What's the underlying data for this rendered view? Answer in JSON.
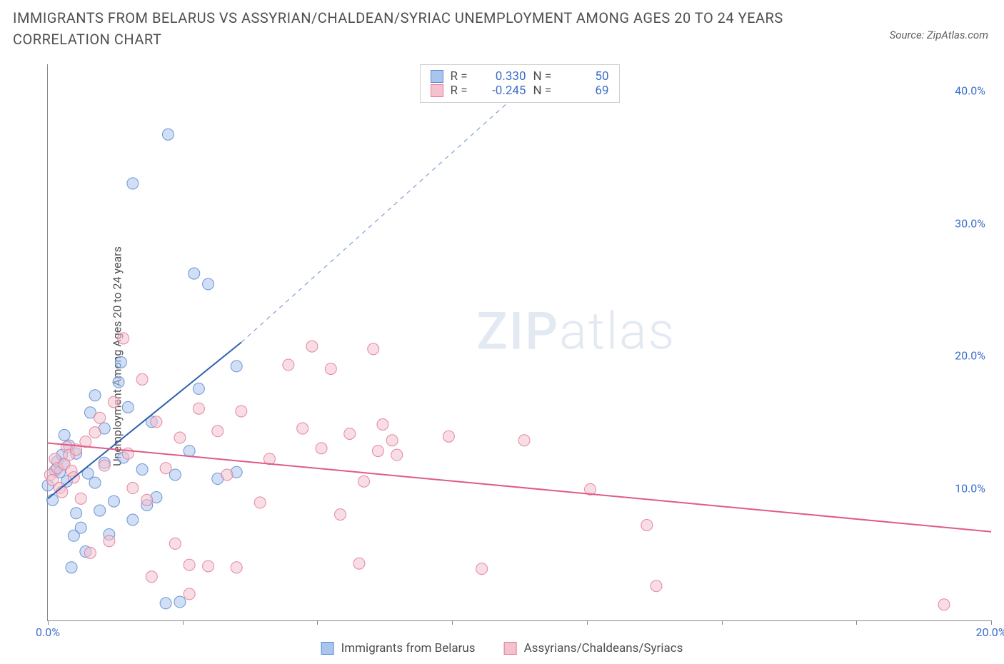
{
  "title": "IMMIGRANTS FROM BELARUS VS ASSYRIAN/CHALDEAN/SYRIAC UNEMPLOYMENT AMONG AGES 20 TO 24 YEARS CORRELATION CHART",
  "source": "Source: ZipAtlas.com",
  "watermark_a": "ZIP",
  "watermark_b": "atlas",
  "ylabel": "Unemployment Among Ages 20 to 24 years",
  "chart": {
    "type": "scatter",
    "background_color": "#ffffff",
    "axis_color": "#888888",
    "tick_label_color": "#3b6fc9",
    "xlim": [
      0,
      20
    ],
    "ylim": [
      0,
      42
    ],
    "xticks": [
      0,
      2.86,
      5.71,
      8.57,
      11.43,
      14.29,
      17.14,
      20
    ],
    "xtick_labels": [
      "0.0%",
      "",
      "",
      "",
      "",
      "",
      "",
      "20.0%"
    ],
    "yticks": [
      10,
      20,
      30,
      40
    ],
    "ytick_labels": [
      "10.0%",
      "20.0%",
      "30.0%",
      "40.0%"
    ],
    "marker_radius": 8,
    "marker_opacity": 0.55,
    "marker_stroke_opacity": 0.9,
    "series": [
      {
        "name": "Immigrants from Belarus",
        "color_fill": "#a9c4ed",
        "color_stroke": "#5b8bd4",
        "R": "0.330",
        "N": "50",
        "trend": {
          "x1": 0,
          "y1": 9.2,
          "x2": 4.1,
          "y2": 21.0,
          "dash_to_x": 10.5,
          "dash_to_y": 41.5,
          "color": "#2f5fb0",
          "width": 2
        },
        "points": [
          [
            0.0,
            10.2
          ],
          [
            0.1,
            9.1
          ],
          [
            0.15,
            11.3
          ],
          [
            0.2,
            12.0
          ],
          [
            0.25,
            11.2
          ],
          [
            0.3,
            12.5
          ],
          [
            0.35,
            11.8
          ],
          [
            0.35,
            14.0
          ],
          [
            0.4,
            10.5
          ],
          [
            0.45,
            13.2
          ],
          [
            0.5,
            4.0
          ],
          [
            0.55,
            6.4
          ],
          [
            0.6,
            8.1
          ],
          [
            0.6,
            12.6
          ],
          [
            0.7,
            7.0
          ],
          [
            0.8,
            5.2
          ],
          [
            0.85,
            11.1
          ],
          [
            0.9,
            15.7
          ],
          [
            1.0,
            10.4
          ],
          [
            1.0,
            17.0
          ],
          [
            1.1,
            8.3
          ],
          [
            1.2,
            14.5
          ],
          [
            1.2,
            11.9
          ],
          [
            1.3,
            6.5
          ],
          [
            1.4,
            9.0
          ],
          [
            1.5,
            18.0
          ],
          [
            1.55,
            19.5
          ],
          [
            1.6,
            12.3
          ],
          [
            1.7,
            16.1
          ],
          [
            1.8,
            7.6
          ],
          [
            1.8,
            33.0
          ],
          [
            2.0,
            11.4
          ],
          [
            2.1,
            8.7
          ],
          [
            2.2,
            15.0
          ],
          [
            2.3,
            9.3
          ],
          [
            2.5,
            1.3
          ],
          [
            2.55,
            36.7
          ],
          [
            2.7,
            11.0
          ],
          [
            2.8,
            1.4
          ],
          [
            3.0,
            12.8
          ],
          [
            3.1,
            26.2
          ],
          [
            3.2,
            17.5
          ],
          [
            3.4,
            25.4
          ],
          [
            3.6,
            10.7
          ],
          [
            4.0,
            19.2
          ],
          [
            4.0,
            11.2
          ]
        ]
      },
      {
        "name": "Assyrians/Chaldeans/Syriacs",
        "color_fill": "#f4c1cd",
        "color_stroke": "#e27a98",
        "R": "-0.245",
        "N": "69",
        "trend": {
          "x1": 0,
          "y1": 13.4,
          "x2": 20,
          "y2": 6.7,
          "color": "#e05b83",
          "width": 2
        },
        "points": [
          [
            0.05,
            11.0
          ],
          [
            0.1,
            10.6
          ],
          [
            0.15,
            12.2
          ],
          [
            0.2,
            11.5
          ],
          [
            0.25,
            10.0
          ],
          [
            0.3,
            9.7
          ],
          [
            0.35,
            11.8
          ],
          [
            0.4,
            13.1
          ],
          [
            0.45,
            12.5
          ],
          [
            0.5,
            11.3
          ],
          [
            0.55,
            10.8
          ],
          [
            0.6,
            12.9
          ],
          [
            0.7,
            9.2
          ],
          [
            0.8,
            13.5
          ],
          [
            0.9,
            5.1
          ],
          [
            1.0,
            14.2
          ],
          [
            1.1,
            15.3
          ],
          [
            1.2,
            11.7
          ],
          [
            1.3,
            6.0
          ],
          [
            1.4,
            16.5
          ],
          [
            1.6,
            21.3
          ],
          [
            1.7,
            12.6
          ],
          [
            1.8,
            10.0
          ],
          [
            2.0,
            18.2
          ],
          [
            2.1,
            9.1
          ],
          [
            2.2,
            3.3
          ],
          [
            2.3,
            15.0
          ],
          [
            2.5,
            11.5
          ],
          [
            2.7,
            5.8
          ],
          [
            2.8,
            13.8
          ],
          [
            3.0,
            2.0
          ],
          [
            3.0,
            4.2
          ],
          [
            3.2,
            16.0
          ],
          [
            3.4,
            4.1
          ],
          [
            3.6,
            14.3
          ],
          [
            3.8,
            11.0
          ],
          [
            4.0,
            4.0
          ],
          [
            4.1,
            15.8
          ],
          [
            4.5,
            8.9
          ],
          [
            4.7,
            12.2
          ],
          [
            5.1,
            19.3
          ],
          [
            5.4,
            14.5
          ],
          [
            5.6,
            20.7
          ],
          [
            5.8,
            13.0
          ],
          [
            6.0,
            19.0
          ],
          [
            6.2,
            8.0
          ],
          [
            6.4,
            14.1
          ],
          [
            6.6,
            4.3
          ],
          [
            6.7,
            10.5
          ],
          [
            6.9,
            20.5
          ],
          [
            7.0,
            12.8
          ],
          [
            7.1,
            14.8
          ],
          [
            7.3,
            13.6
          ],
          [
            7.4,
            12.5
          ],
          [
            8.5,
            13.9
          ],
          [
            9.2,
            3.9
          ],
          [
            10.1,
            13.6
          ],
          [
            11.5,
            9.9
          ],
          [
            12.7,
            7.2
          ],
          [
            12.9,
            2.6
          ],
          [
            19.0,
            1.2
          ]
        ]
      }
    ],
    "legend_top": {
      "R_label": "R =",
      "N_label": "N ="
    },
    "legend_bottom": [
      {
        "swatch_fill": "#a9c4ed",
        "swatch_stroke": "#5b8bd4",
        "label": "Immigrants from Belarus"
      },
      {
        "swatch_fill": "#f4c1cd",
        "swatch_stroke": "#e27a98",
        "label": "Assyrians/Chaldeans/Syriacs"
      }
    ]
  }
}
